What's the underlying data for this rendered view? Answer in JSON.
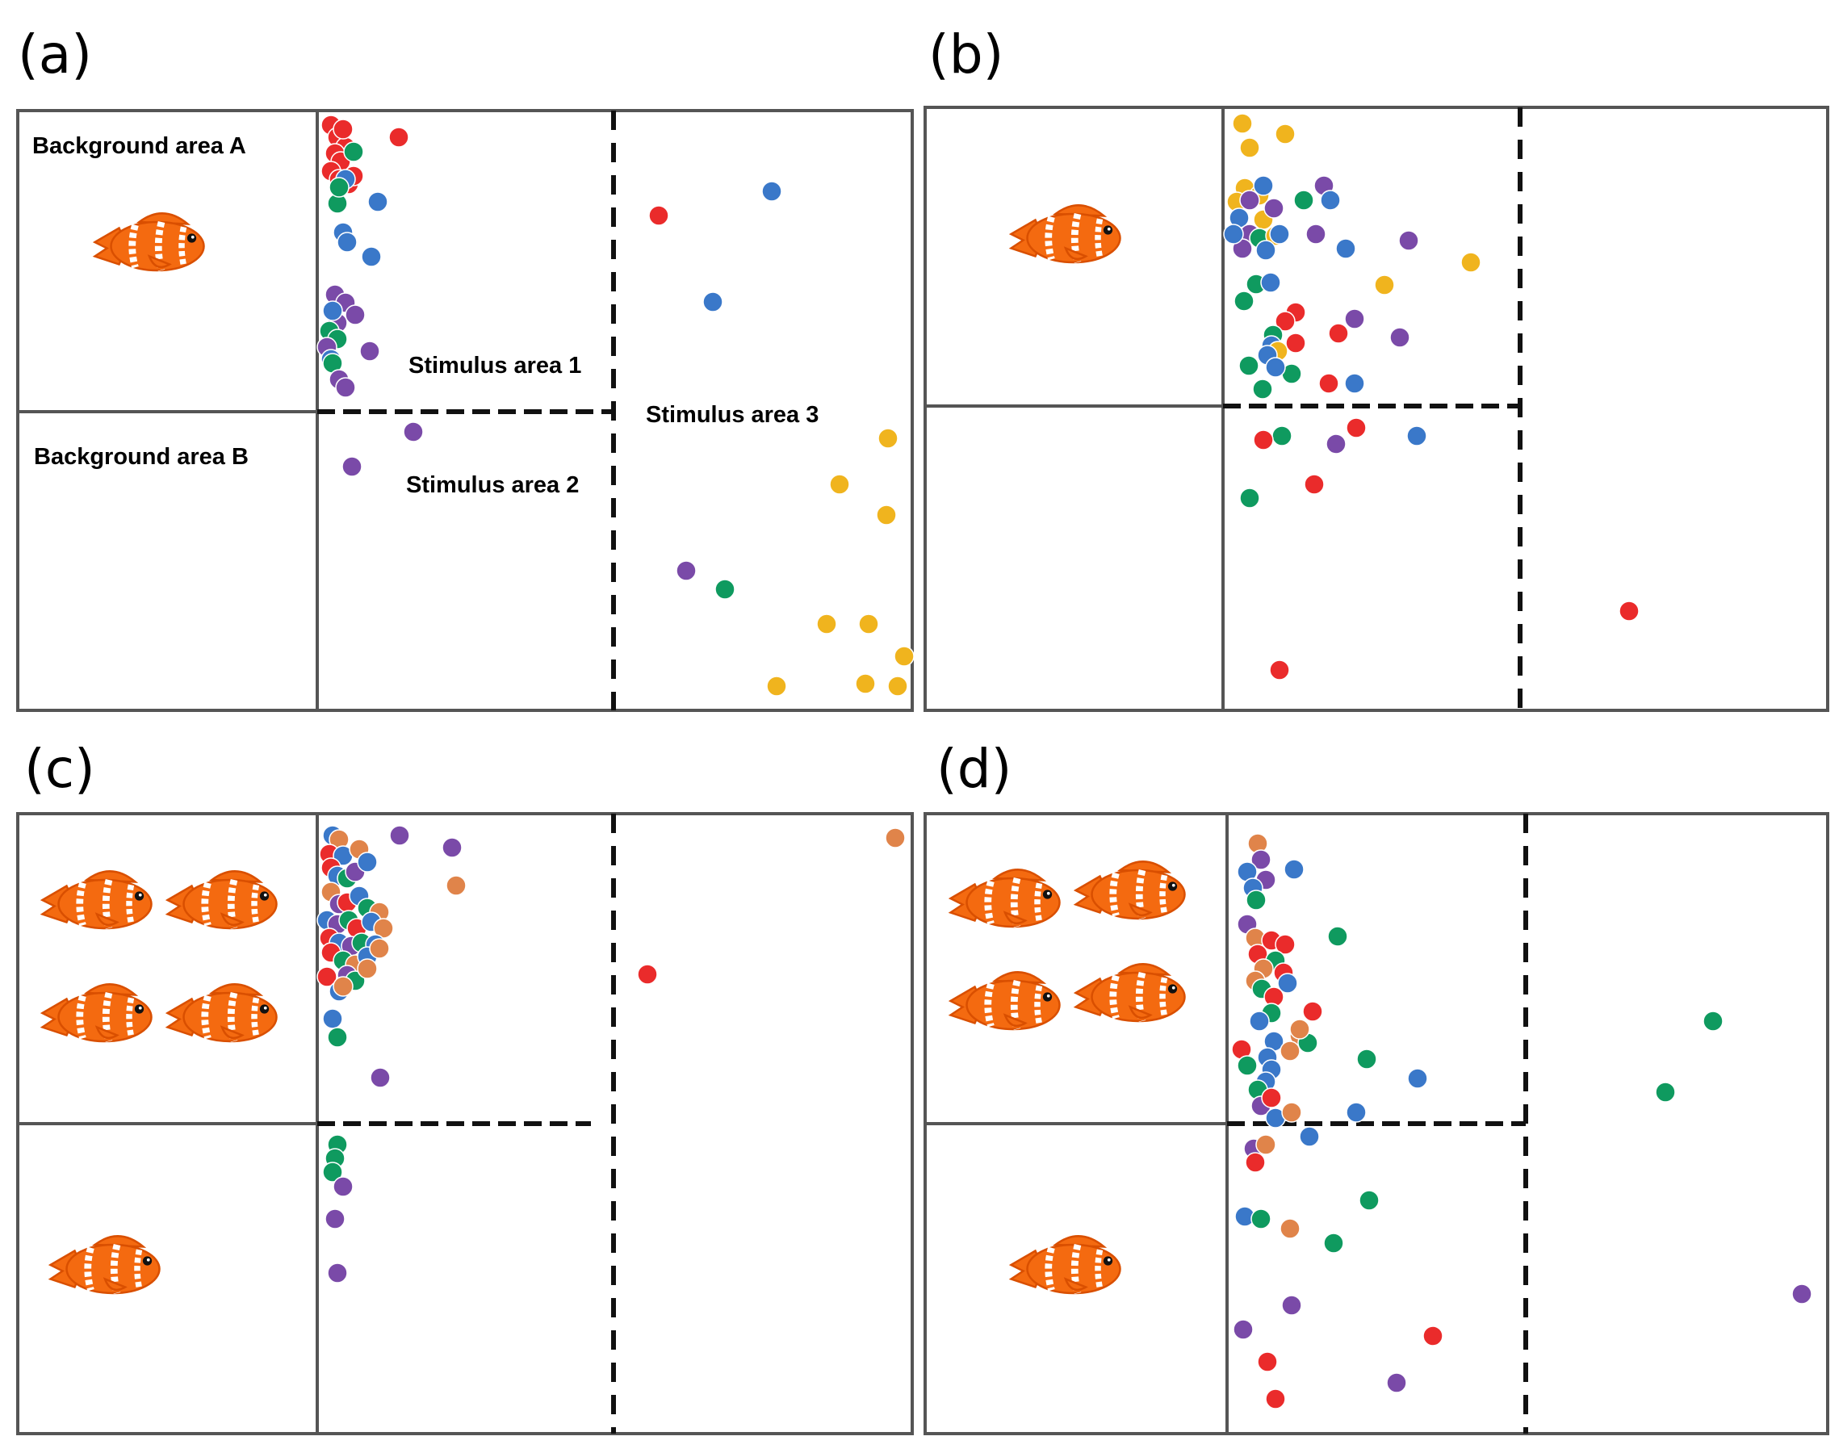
{
  "figure": {
    "panels": [
      {
        "label": "(a)",
        "area_labels": {
          "background_a": "Background area A",
          "background_b": "Background area B",
          "stimulus_1": "Stimulus area 1",
          "stimulus_2": "Stimulus area 2",
          "stimulus_3": "Stimulus area 3"
        },
        "stimulus_fish_count": 1,
        "points_note": "dots mark observed fish positions"
      },
      {
        "label": "(b)",
        "stimulus_fish_count": 1
      },
      {
        "label": "(c)",
        "stimulus_fish_count": 4,
        "background_b_fish_count": 1
      },
      {
        "label": "(d)",
        "stimulus_fish_count": 4,
        "background_b_fish_count": 1
      }
    ],
    "colors": {
      "red": "#ea2b2b",
      "green": "#0f9a5f",
      "blue": "#3a78c9",
      "purple": "#7a4aa8",
      "yellow": "#f0b41e",
      "orange": "#e0844a",
      "fish_body": "#f46a10",
      "fish_stripe": "#ffffff"
    }
  }
}
